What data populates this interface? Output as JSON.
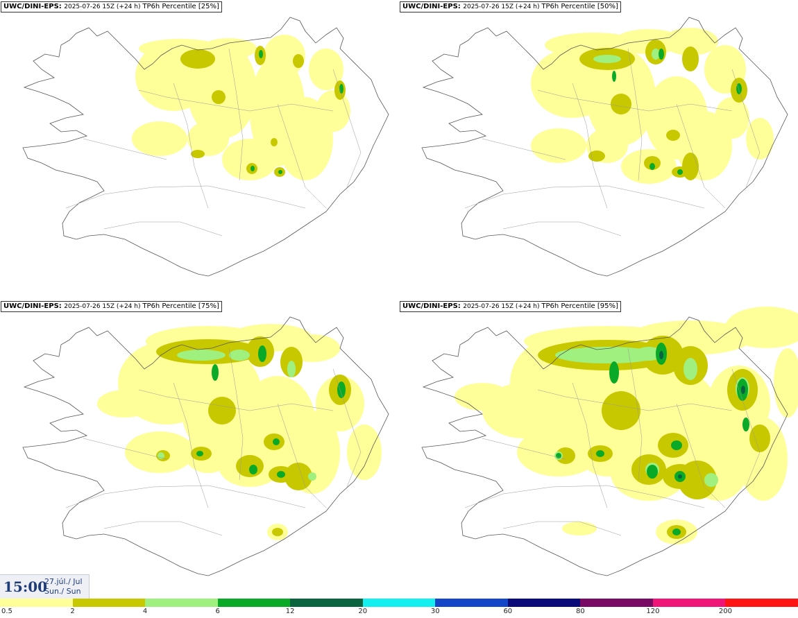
{
  "panels": [
    {
      "model": "UWC/DINI-EPS",
      "run": "2025-07-26 15Z (+24 h)",
      "product": "TP6h Percentile [25%]"
    },
    {
      "model": "UWC/DINI-EPS",
      "run": "2025-07-26 15Z (+24 h)",
      "product": "TP6h Percentile [50%]"
    },
    {
      "model": "UWC/DINI-EPS",
      "run": "2025-07-26 15Z (+24 h)",
      "product": "TP6h Percentile [75%]"
    },
    {
      "model": "UWC/DINI-EPS",
      "run": "2025-07-26 15Z (+24 h)",
      "product": "TP6h Percentile [95%]"
    }
  ],
  "valid_time": {
    "hour": "15:00",
    "date_line1": "27.júl./ Jul",
    "date_line2": "Sun./ Sun"
  },
  "colorbar": {
    "colors": [
      "#ffff99",
      "#c8c800",
      "#a0f080",
      "#0aaa28",
      "#0a6440",
      "#14f0f0",
      "#1446c8",
      "#0a0a78",
      "#780a64",
      "#f01478",
      "#ff1414"
    ],
    "ticks": [
      "0.5",
      "2",
      "4",
      "6",
      "12",
      "20",
      "30",
      "60",
      "80",
      "120",
      "200"
    ]
  }
}
